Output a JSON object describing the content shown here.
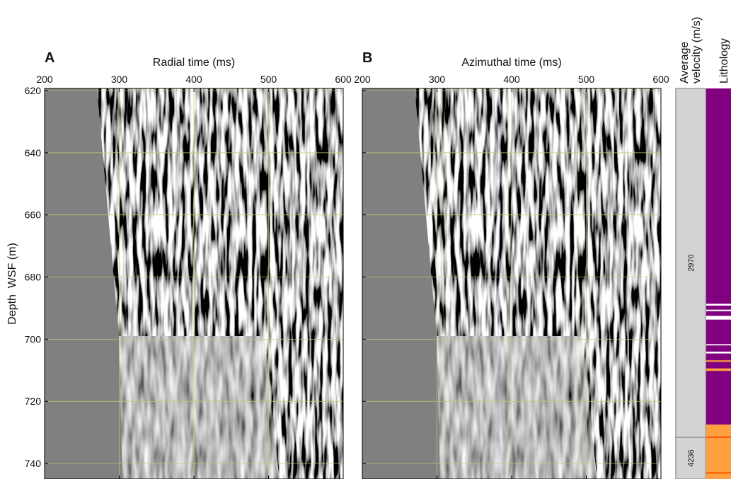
{
  "panels": [
    {
      "label": "A",
      "x_label": "Radial time (ms)",
      "xlim": [
        200,
        600
      ],
      "xticks": [
        200,
        300,
        400,
        500,
        600
      ],
      "ylim": [
        619.3,
        745
      ],
      "yticks": [
        620,
        640,
        660,
        680,
        700,
        720,
        740
      ],
      "show_y_labels": true
    },
    {
      "label": "B",
      "x_label": "Azimuthal time (ms)",
      "xlim": [
        200,
        600
      ],
      "xticks": [
        200,
        300,
        400,
        500,
        600
      ],
      "ylim": [
        619.3,
        745
      ],
      "yticks": [
        620,
        640,
        660,
        680,
        700,
        720,
        740
      ],
      "show_y_labels": false
    }
  ],
  "y_label": "Depth  WSF (m)",
  "velocity": {
    "title": [
      "Average",
      "velocity (m/s)"
    ],
    "color": "#d3d3d3",
    "intervals": [
      {
        "top": 619.3,
        "base": 731.6,
        "value": 2970
      },
      {
        "top": 731.6,
        "base": 745,
        "value": 4236
      }
    ]
  },
  "lithology": {
    "title": "Lithology",
    "units": [
      {
        "top": 619.3,
        "base": 727.5,
        "color": "#800080"
      },
      {
        "top": 727.5,
        "base": 745,
        "color": "#ffa040"
      },
      {
        "top": 688.6,
        "base": 689.2,
        "color": "#ffffff"
      },
      {
        "top": 690.5,
        "base": 691,
        "color": "#ffffff"
      },
      {
        "top": 692.5,
        "base": 693.7,
        "color": "#ffffff"
      },
      {
        "top": 701.6,
        "base": 702,
        "color": "#ffffff"
      },
      {
        "top": 704,
        "base": 704.6,
        "color": "#ffffff"
      },
      {
        "top": 706.8,
        "base": 707.3,
        "color": "#ffa040"
      },
      {
        "top": 709.4,
        "base": 710.2,
        "color": "#ffa040"
      },
      {
        "top": 731.3,
        "base": 731.8,
        "color": "#ff5a00"
      },
      {
        "top": 742.8,
        "base": 743.3,
        "color": "#ff5a00"
      }
    ]
  }
}
